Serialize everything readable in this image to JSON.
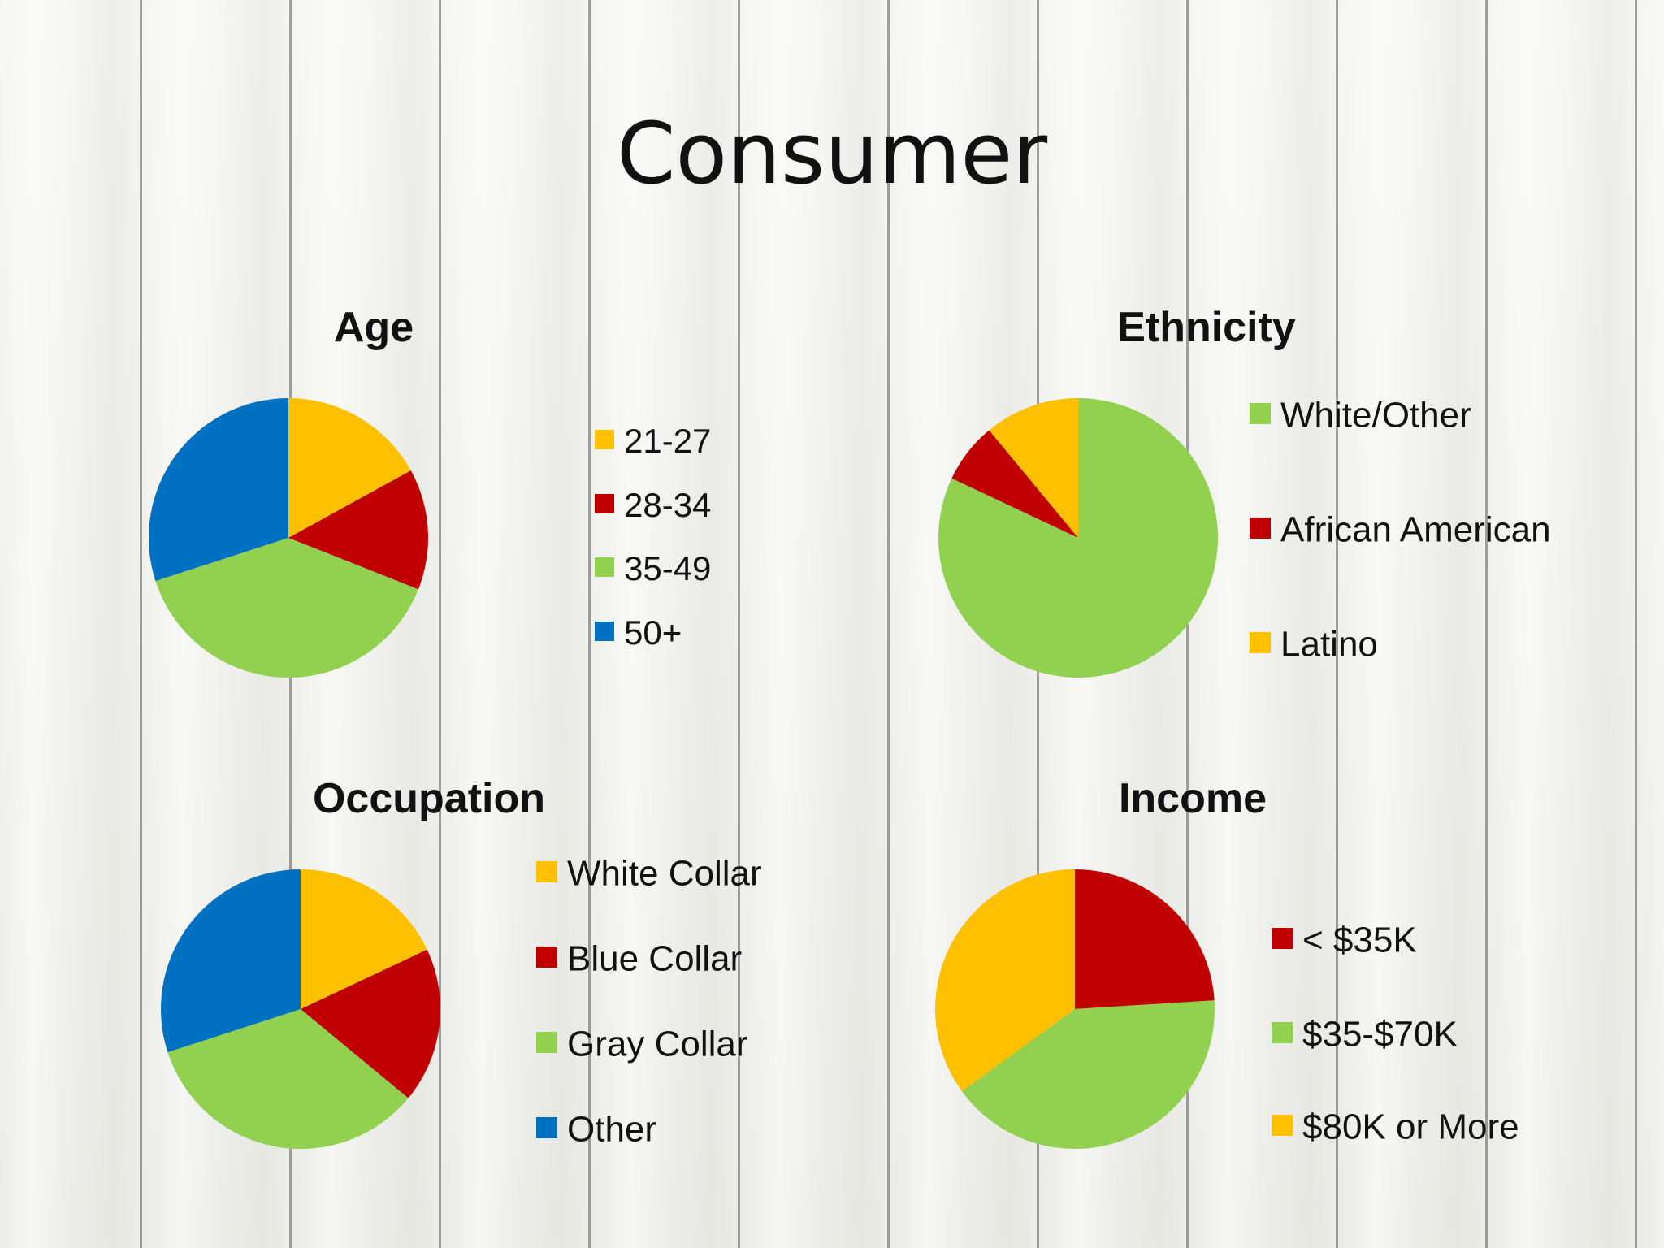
{
  "page_title": "Consumer",
  "colors": {
    "yellow": "#FFC000",
    "red": "#C00000",
    "green": "#92D050",
    "blue": "#0070C0"
  },
  "chart_data": [
    {
      "type": "pie",
      "title": "Age",
      "categories": [
        "21-27",
        "28-34",
        "35-49",
        "50+"
      ],
      "values": [
        17,
        14,
        39,
        30
      ],
      "colors": [
        "#FFC000",
        "#C00000",
        "#92D050",
        "#0070C0"
      ]
    },
    {
      "type": "pie",
      "title": "Ethnicity",
      "categories": [
        "White/Other",
        "African American",
        "Latino"
      ],
      "values": [
        82,
        7,
        11
      ],
      "colors": [
        "#92D050",
        "#C00000",
        "#FFC000"
      ]
    },
    {
      "type": "pie",
      "title": "Occupation",
      "categories": [
        "White Collar",
        "Blue Collar",
        "Gray Collar",
        "Other"
      ],
      "values": [
        18,
        18,
        34,
        30
      ],
      "colors": [
        "#FFC000",
        "#C00000",
        "#92D050",
        "#0070C0"
      ]
    },
    {
      "type": "pie",
      "title": "Income",
      "categories": [
        "< $35K",
        "$35-$70K",
        "$80K or More"
      ],
      "values": [
        24,
        41,
        35
      ],
      "colors": [
        "#C00000",
        "#92D050",
        "#FFC000"
      ]
    }
  ]
}
